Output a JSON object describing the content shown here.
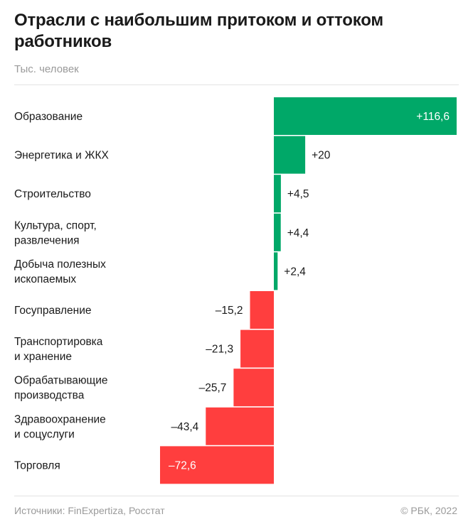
{
  "header": {
    "title": "Отрасли с наибольшим притоком и оттоком работников",
    "subtitle": "Тыс. человек"
  },
  "footer": {
    "source": "Источники: FinExpertiza, Росстат",
    "copyright": "© РБК, 2022"
  },
  "colors": {
    "positive": "#00a868",
    "negative": "#ff3e3e"
  },
  "chart_data": {
    "type": "bar",
    "orientation": "horizontal",
    "title": "Отрасли с наибольшим притоком и оттоком работников",
    "subtitle": "Тыс. человек",
    "categories": [
      [
        "Образование"
      ],
      [
        "Энергетика и ЖКХ"
      ],
      [
        "Строительство"
      ],
      [
        "Культура, спорт,",
        "развлечения"
      ],
      [
        "Добыча полезных",
        "ископаемых"
      ],
      [
        "Госуправление"
      ],
      [
        "Транспортировка",
        "и хранение"
      ],
      [
        "Обрабатывающие",
        "производства"
      ],
      [
        "Здравоохранение",
        "и соцуслуги"
      ],
      [
        "Торговля"
      ]
    ],
    "values": [
      116.6,
      20,
      4.5,
      4.4,
      2.4,
      -15.2,
      -21.3,
      -25.7,
      -43.4,
      -72.6
    ],
    "labels": [
      "+116,6",
      "+20",
      "+4,5",
      "+4,4",
      "+2,4",
      "–15,2",
      "–21,3",
      "–25,7",
      "–43,4",
      "–72,6"
    ],
    "label_inside": [
      true,
      false,
      false,
      false,
      false,
      false,
      false,
      false,
      false,
      true
    ],
    "xlim": [
      -72.6,
      116.6
    ]
  }
}
